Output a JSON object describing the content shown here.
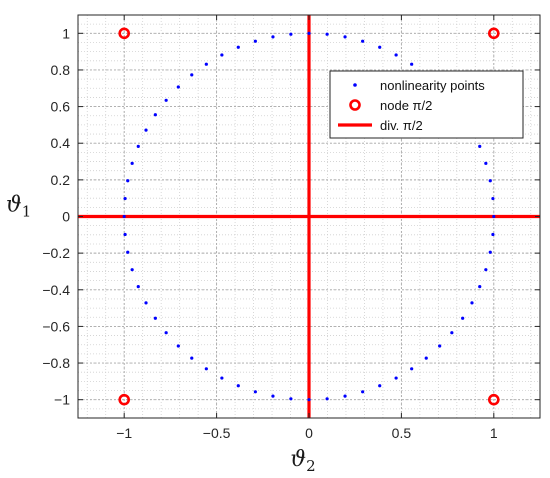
{
  "chart_data": {
    "type": "scatter",
    "title": "",
    "xlabel": "ϑ",
    "xlabel_sub": "2",
    "ylabel": "ϑ",
    "ylabel_sub": "1",
    "xlim": [
      -1.25,
      1.25
    ],
    "ylim": [
      -1.1,
      1.1
    ],
    "xticks": [
      -1,
      -0.5,
      0,
      0.5,
      1
    ],
    "xtick_labels": [
      "−1",
      "−0.5",
      "0",
      "0.5",
      "1"
    ],
    "yticks": [
      -1,
      -0.8,
      -0.6,
      -0.4,
      -0.2,
      0,
      0.2,
      0.4,
      0.6,
      0.8,
      1
    ],
    "ytick_labels": [
      "−1",
      "−0.8",
      "−0.6",
      "−0.4",
      "−0.2",
      "0",
      "0.2",
      "0.4",
      "0.6",
      "0.8",
      "1"
    ],
    "grid": true,
    "minor_grid": true,
    "legend_position": "top-right",
    "legend": [
      {
        "key": "points",
        "label": "nonlinearity points"
      },
      {
        "key": "nodes",
        "label": "node π/2"
      },
      {
        "key": "divs",
        "label": "div. π/2"
      }
    ],
    "series": [
      {
        "key": "points",
        "name": "nonlinearity points",
        "marker": "dot",
        "color": "#0000ff",
        "count": 64,
        "note": "points evenly spaced on the unit circle"
      },
      {
        "key": "nodes",
        "name": "node π/2",
        "marker": "circle",
        "color": "#ff0000",
        "points": [
          [
            -1,
            1
          ],
          [
            1,
            1
          ],
          [
            -1,
            -1
          ],
          [
            1,
            -1
          ]
        ]
      },
      {
        "key": "divs",
        "name": "div. π/2",
        "type": "lines",
        "color": "#ff0000",
        "lines": [
          {
            "orientation": "vertical",
            "x": 0
          },
          {
            "orientation": "horizontal",
            "y": 0
          }
        ]
      }
    ]
  }
}
